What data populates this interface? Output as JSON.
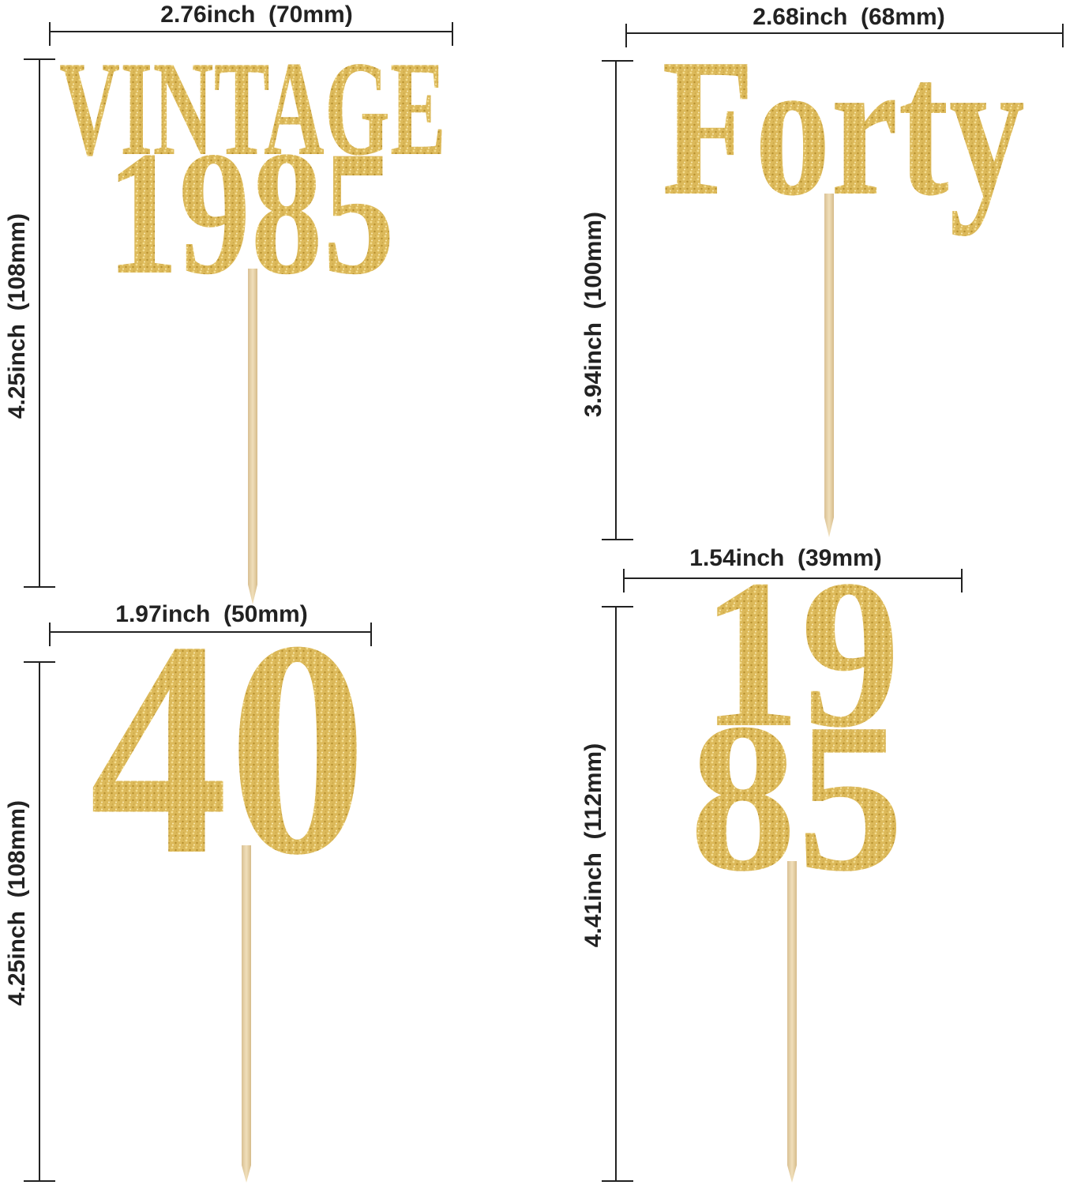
{
  "colors": {
    "gold": "#dcb95a",
    "gold_light": "#f3dc8e",
    "gold_dark": "#b8912f",
    "stick": "#e9d5ab",
    "line": "#222222"
  },
  "toppers": [
    {
      "lines": [
        "VINTAGE",
        "1985"
      ],
      "width_label": "2.76inch  (70mm)",
      "height_label": "4.25inch  (108mm)"
    },
    {
      "lines": [
        "Forty"
      ],
      "width_label": "2.68inch  (68mm)",
      "height_label": "3.94inch  (100mm)"
    },
    {
      "lines": [
        "40"
      ],
      "width_label": "1.97inch  (50mm)",
      "height_label": "4.25inch  (108mm)"
    },
    {
      "lines": [
        "19",
        "85"
      ],
      "width_label": "1.54inch  (39mm)",
      "height_label": "4.41inch  (112mm)"
    }
  ]
}
